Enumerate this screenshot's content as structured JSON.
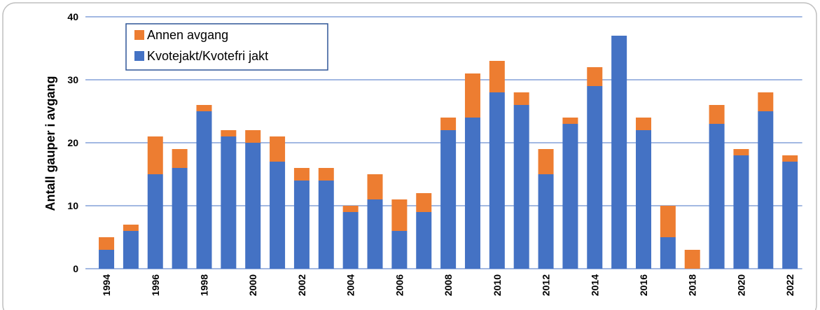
{
  "chart_data": {
    "type": "stacked_bar",
    "y_label": "Antall gauper i avgang",
    "categories": [
      "1994",
      null,
      "1996",
      null,
      "1998",
      null,
      "2000",
      null,
      "2002",
      null,
      "2004",
      null,
      "2006",
      null,
      "2008",
      null,
      "2010",
      null,
      "2012",
      null,
      "2014",
      null,
      "2016",
      null,
      "2018",
      null,
      "2020",
      null,
      "2022"
    ],
    "series": [
      {
        "name": "Kvotejakt/Kvotefri jakt",
        "color": "#4472c4",
        "values": [
          3,
          6,
          15,
          16,
          25,
          21,
          20,
          17,
          14,
          14,
          9,
          11,
          6,
          9,
          22,
          24,
          28,
          26,
          15,
          23,
          29,
          37,
          22,
          5,
          0,
          23,
          18,
          25,
          17
        ]
      },
      {
        "name": "Annen avgang",
        "color": "#ed7d31",
        "values": [
          2,
          1,
          6,
          3,
          1,
          1,
          2,
          4,
          2,
          2,
          1,
          4,
          5,
          3,
          2,
          7,
          5,
          2,
          4,
          1,
          3,
          0,
          2,
          5,
          3,
          3,
          1,
          3,
          1
        ]
      }
    ],
    "ylim": [
      0,
      40
    ],
    "yticks": [
      0,
      10,
      20,
      30,
      40
    ],
    "grid": true,
    "legend": "top-left"
  }
}
